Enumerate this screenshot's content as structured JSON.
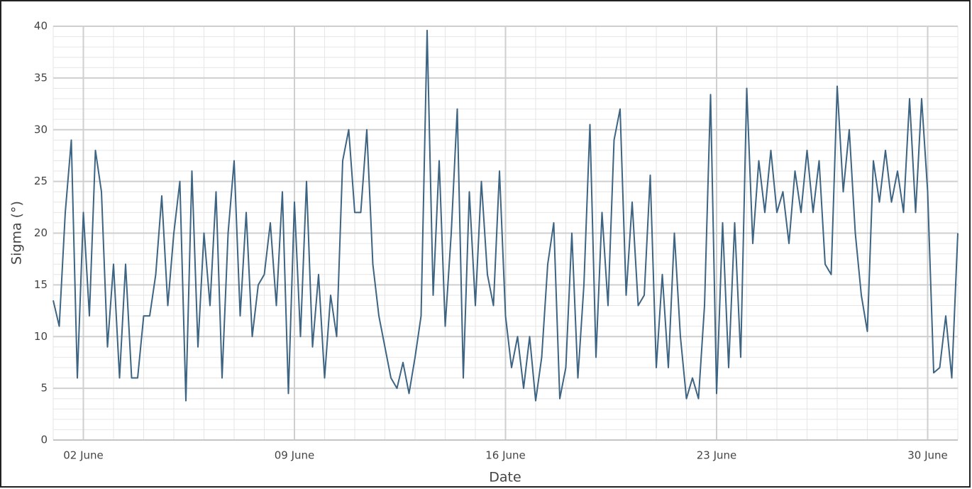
{
  "chart_data": {
    "type": "line",
    "xlabel": "Date",
    "ylabel": "Sigma (°)",
    "x": [
      1,
      1.2,
      1.4,
      1.6,
      1.8,
      2,
      2.2,
      2.4,
      2.6,
      2.8,
      3,
      3.2,
      3.4,
      3.6,
      3.8,
      4,
      4.2,
      4.4,
      4.6,
      4.8,
      5,
      5.2,
      5.4,
      5.6,
      5.8,
      6,
      6.2,
      6.4,
      6.6,
      6.8,
      7,
      7.2,
      7.4,
      7.6,
      7.8,
      8,
      8.2,
      8.4,
      8.6,
      8.8,
      9,
      9.2,
      9.4,
      9.6,
      9.8,
      10,
      10.2,
      10.4,
      10.6,
      10.8,
      11,
      11.2,
      11.4,
      11.6,
      11.8,
      12,
      12.2,
      12.4,
      12.6,
      12.8,
      13,
      13.2,
      13.4,
      13.6,
      13.8,
      14,
      14.2,
      14.4,
      14.6,
      14.8,
      15,
      15.2,
      15.4,
      15.6,
      15.8,
      16,
      16.2,
      16.4,
      16.6,
      16.8,
      17,
      17.2,
      17.4,
      17.6,
      17.8,
      18,
      18.2,
      18.4,
      18.6,
      18.8,
      19,
      19.2,
      19.4,
      19.6,
      19.8,
      20,
      20.2,
      20.4,
      20.6,
      20.8,
      21,
      21.2,
      21.4,
      21.6,
      21.8,
      22,
      22.2,
      22.4,
      22.6,
      22.8,
      23,
      23.2,
      23.4,
      23.6,
      23.8,
      24,
      24.2,
      24.4,
      24.6,
      24.8,
      25,
      25.2,
      25.4,
      25.6,
      25.8,
      26,
      26.2,
      26.4,
      26.6,
      26.8,
      27,
      27.2,
      27.4,
      27.6,
      27.8,
      28,
      28.2,
      28.4,
      28.6,
      28.8,
      29,
      29.2,
      29.4,
      29.6,
      29.8,
      30,
      30.2,
      30.4,
      30.6,
      30.8,
      31
    ],
    "series": [
      {
        "name": "Sigma",
        "color": "#3d6482",
        "values": [
          13.5,
          11,
          22,
          29,
          6,
          22,
          12,
          28,
          24,
          9,
          17,
          6,
          17,
          6,
          6,
          12,
          12,
          16,
          23.6,
          13,
          20,
          25,
          3.8,
          26,
          9,
          20,
          13,
          24,
          6,
          20,
          27,
          12,
          22,
          10,
          15,
          16,
          21,
          13,
          24,
          4.5,
          23,
          10,
          25,
          9,
          16,
          6,
          14,
          10,
          27,
          30,
          22,
          22,
          30,
          17,
          12,
          9,
          6,
          5,
          7.5,
          4.5,
          8,
          12,
          39.6,
          14,
          27,
          11,
          20,
          32,
          6,
          24,
          13,
          25,
          16,
          13,
          26,
          12,
          7,
          10,
          5,
          10,
          3.8,
          8,
          17,
          21,
          4,
          7,
          20,
          6,
          15,
          30.5,
          8,
          22,
          13,
          29,
          32,
          14,
          23,
          13,
          14,
          25.6,
          7,
          16,
          7,
          20,
          10,
          4,
          6,
          4,
          13,
          33.4,
          4.5,
          21,
          7,
          21,
          8,
          34,
          19,
          27,
          22,
          28,
          22,
          24,
          19,
          26,
          22,
          28,
          22,
          27,
          17,
          16,
          34.2,
          24,
          30,
          20,
          14,
          10.5,
          27,
          23,
          28,
          23,
          26,
          22,
          33,
          22,
          33,
          24,
          6.5,
          7,
          12,
          6,
          20
        ]
      }
    ],
    "xlim": [
      1,
      31
    ],
    "xticks": [
      {
        "value": 2,
        "label": "02 June"
      },
      {
        "value": 9,
        "label": "09 June"
      },
      {
        "value": 16,
        "label": "16 June"
      },
      {
        "value": 23,
        "label": "23 June"
      },
      {
        "value": 30,
        "label": "30 June"
      }
    ],
    "ylim": [
      0,
      40
    ],
    "yticks": [
      0,
      5,
      10,
      15,
      20,
      25,
      30,
      35,
      40
    ],
    "grid": true,
    "minor_grid": true
  }
}
